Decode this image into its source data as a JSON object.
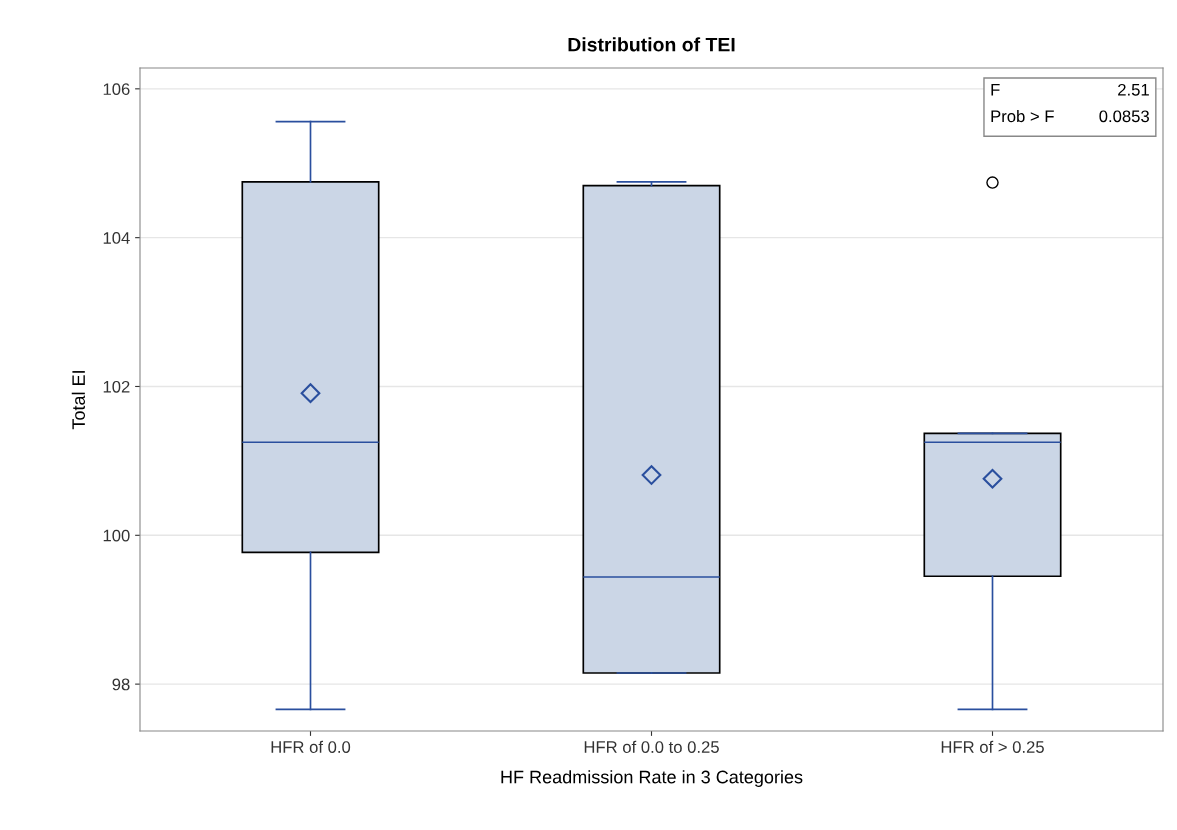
{
  "chart_data": {
    "type": "box",
    "title": "Distribution of TEI",
    "xlabel": "HF Readmission Rate in 3 Categories",
    "ylabel": "Total EI",
    "categories": [
      "HFR of 0.0",
      "HFR of 0.0 to 0.25",
      "HFR of > 0.25"
    ],
    "boxes": [
      {
        "low": 97.66,
        "q1": 99.77,
        "median": 101.25,
        "q3": 104.75,
        "high": 105.56,
        "mean": 101.91
      },
      {
        "low": 98.15,
        "q1": 98.15,
        "median": 99.44,
        "q3": 104.7,
        "high": 104.75,
        "mean": 100.81
      },
      {
        "low": 97.66,
        "q1": 99.45,
        "median": 101.25,
        "q3": 101.37,
        "high": 101.37,
        "mean": 100.76,
        "outliers": [
          104.74
        ]
      }
    ],
    "color": "#cbd6e6",
    "ylim": [
      97.37,
      106.28
    ],
    "yticks": [
      98,
      100,
      102,
      104,
      106
    ],
    "grid": "y",
    "annotations": [
      "F",
      "2.51",
      "Prob > F",
      "0.0853"
    ]
  }
}
